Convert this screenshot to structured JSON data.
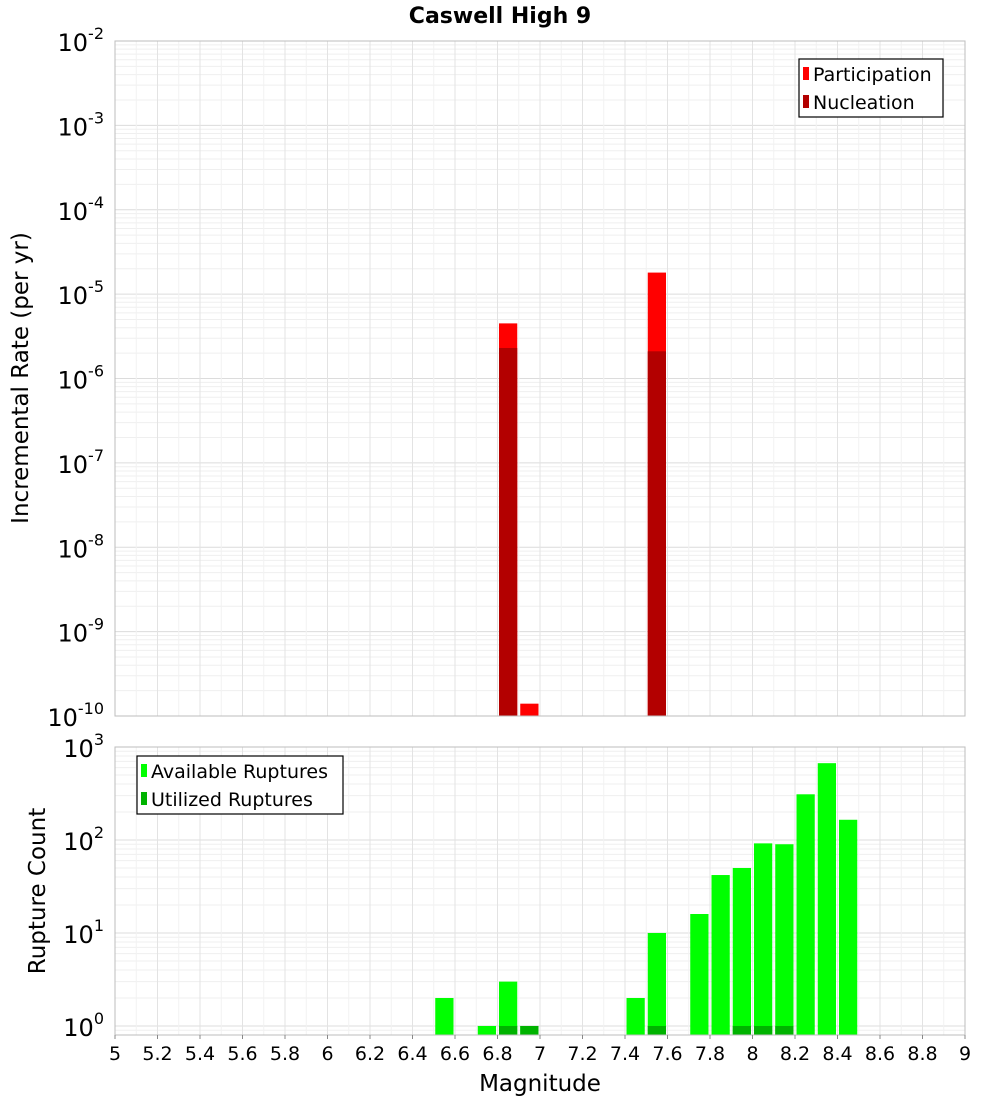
{
  "title": "Caswell High 9",
  "chart_data": [
    {
      "type": "bar",
      "scale": "log",
      "ylabel": "Incremental Rate (per yr)",
      "ylim": [
        1e-10,
        0.01
      ],
      "y_ticks": [
        {
          "base": "10",
          "exp": "-2",
          "value": 0.01
        },
        {
          "base": "10",
          "exp": "-3",
          "value": 0.001
        },
        {
          "base": "10",
          "exp": "-4",
          "value": 0.0001
        },
        {
          "base": "10",
          "exp": "-5",
          "value": 1e-05
        },
        {
          "base": "10",
          "exp": "-6",
          "value": 1e-06
        },
        {
          "base": "10",
          "exp": "-7",
          "value": 1e-07
        },
        {
          "base": "10",
          "exp": "-8",
          "value": 1e-08
        },
        {
          "base": "10",
          "exp": "-9",
          "value": 1e-09
        },
        {
          "base": "10",
          "exp": "-10",
          "value": 1e-10
        }
      ],
      "legend": {
        "placement": "top-right",
        "entries": [
          {
            "label": "Participation",
            "color": "#ff0000"
          },
          {
            "label": "Nucleation",
            "color": "#b30000"
          }
        ]
      },
      "series": [
        {
          "name": "Participation",
          "color": "#ff0000",
          "points": [
            {
              "x": 6.85,
              "y": 4.5e-06
            },
            {
              "x": 6.95,
              "y": 1.4e-10
            },
            {
              "x": 7.55,
              "y": 1.8e-05
            }
          ]
        },
        {
          "name": "Nucleation",
          "color": "#b30000",
          "points": [
            {
              "x": 6.85,
              "y": 2.3e-06
            },
            {
              "x": 7.55,
              "y": 2.1e-06
            }
          ]
        }
      ]
    },
    {
      "type": "bar",
      "scale": "log",
      "xlabel": "Magnitude",
      "ylabel": "Rupture Count",
      "xlim": [
        5,
        9
      ],
      "ylim": [
        0.8,
        1000
      ],
      "y_ticks": [
        {
          "base": "10",
          "exp": "3",
          "value": 1000
        },
        {
          "base": "10",
          "exp": "2",
          "value": 100
        },
        {
          "base": "10",
          "exp": "1",
          "value": 10
        },
        {
          "base": "10",
          "exp": "0",
          "value": 1
        }
      ],
      "x_ticks": [
        "5",
        "5.2",
        "5.4",
        "5.6",
        "5.8",
        "6",
        "6.2",
        "6.4",
        "6.6",
        "6.8",
        "7",
        "7.2",
        "7.4",
        "7.6",
        "7.8",
        "8",
        "8.2",
        "8.4",
        "8.6",
        "8.8",
        "9"
      ],
      "legend": {
        "placement": "top-left",
        "entries": [
          {
            "label": "Available Ruptures",
            "color": "#00ff00"
          },
          {
            "label": "Utilized Ruptures",
            "color": "#00b300"
          }
        ]
      },
      "series": [
        {
          "name": "Available Ruptures",
          "color": "#00ff00",
          "points": [
            {
              "x": 6.55,
              "y": 2
            },
            {
              "x": 6.75,
              "y": 1
            },
            {
              "x": 6.85,
              "y": 3
            },
            {
              "x": 6.95,
              "y": 1
            },
            {
              "x": 7.45,
              "y": 2
            },
            {
              "x": 7.55,
              "y": 10
            },
            {
              "x": 7.75,
              "y": 16
            },
            {
              "x": 7.85,
              "y": 42
            },
            {
              "x": 7.95,
              "y": 50
            },
            {
              "x": 8.05,
              "y": 92
            },
            {
              "x": 8.15,
              "y": 90
            },
            {
              "x": 8.25,
              "y": 310
            },
            {
              "x": 8.35,
              "y": 670
            },
            {
              "x": 8.45,
              "y": 165
            }
          ]
        },
        {
          "name": "Utilized Ruptures",
          "color": "#00b300",
          "points": [
            {
              "x": 6.85,
              "y": 1
            },
            {
              "x": 6.95,
              "y": 1
            },
            {
              "x": 7.55,
              "y": 1
            },
            {
              "x": 7.95,
              "y": 1
            },
            {
              "x": 8.05,
              "y": 1
            },
            {
              "x": 8.15,
              "y": 1
            }
          ]
        }
      ]
    }
  ]
}
